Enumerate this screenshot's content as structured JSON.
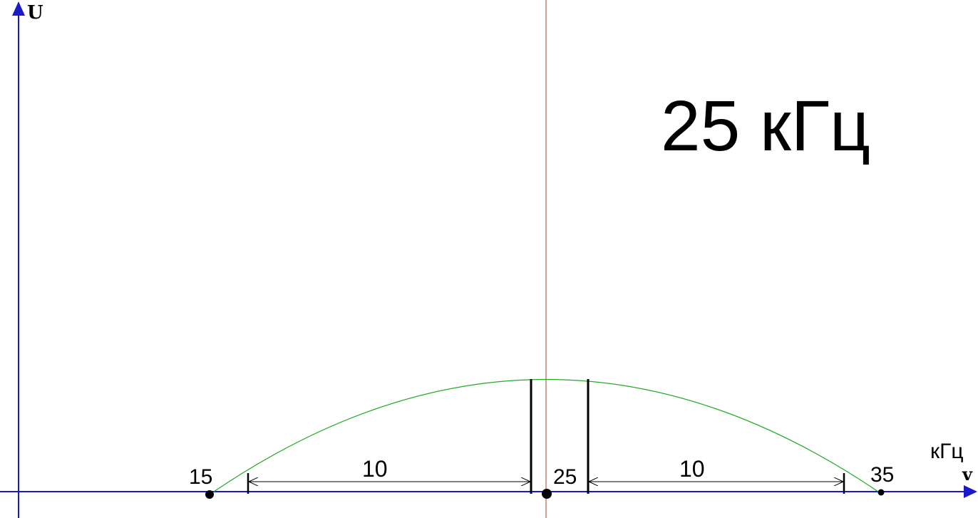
{
  "title": "25 кГц",
  "axes": {
    "y_label": "U",
    "x_label": "v",
    "x_unit": "кГц"
  },
  "colors": {
    "axis": "#1a1acc",
    "center_line": "#a04040",
    "curve": "#22aa22",
    "ink": "#000000"
  },
  "markers": {
    "left_freq": "15",
    "center_freq": "25",
    "right_freq": "35"
  },
  "spans": {
    "left_width": "10",
    "right_width": "10"
  },
  "chart_data": {
    "type": "line",
    "x": [
      15,
      25,
      35
    ],
    "series": [
      {
        "values": [
          0,
          1,
          0
        ]
      }
    ],
    "xlabel": "v",
    "ylabel": "U",
    "xlim": [
      15,
      35
    ]
  }
}
